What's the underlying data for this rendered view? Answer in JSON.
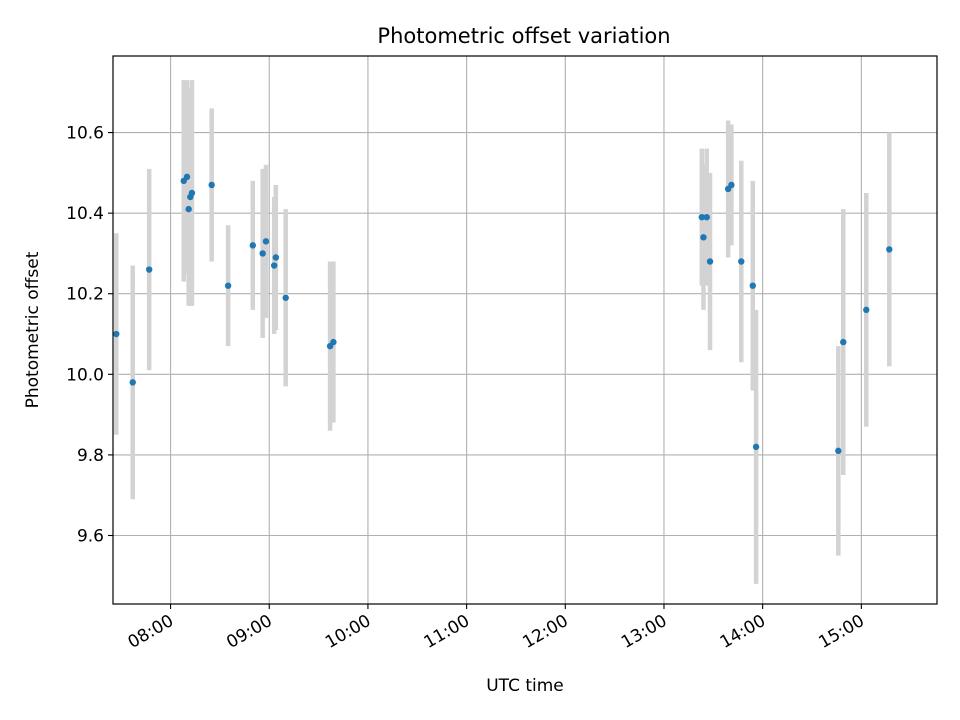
{
  "chart_data": {
    "type": "scatter",
    "title": "Photometric offset variation",
    "xlabel": "UTC time",
    "ylabel": "Photometric offset",
    "x_ticks": [
      "08:00",
      "09:00",
      "10:00",
      "11:00",
      "12:00",
      "13:00",
      "14:00",
      "15:00"
    ],
    "y_ticks": [
      "9.6",
      "9.8",
      "10.0",
      "10.2",
      "10.4",
      "10.6"
    ],
    "xlim": [
      "07:25",
      "15:46"
    ],
    "ylim": [
      9.43,
      10.79
    ],
    "grid": true,
    "colors": {
      "point": "#1f77b4",
      "errorbar": "#d3d3d3",
      "grid": "#b0b0b0"
    },
    "points": [
      {
        "x": "07:27",
        "y": 10.1,
        "err": 0.25
      },
      {
        "x": "07:37",
        "y": 9.98,
        "err": 0.29
      },
      {
        "x": "07:47",
        "y": 10.26,
        "err": 0.25
      },
      {
        "x": "08:08",
        "y": 10.48,
        "err": 0.25
      },
      {
        "x": "08:10",
        "y": 10.49,
        "err": 0.24
      },
      {
        "x": "08:11",
        "y": 10.41,
        "err": 0.24
      },
      {
        "x": "08:12",
        "y": 10.44,
        "err": 0.27
      },
      {
        "x": "08:13",
        "y": 10.45,
        "err": 0.28
      },
      {
        "x": "08:25",
        "y": 10.47,
        "err": 0.19
      },
      {
        "x": "08:35",
        "y": 10.22,
        "err": 0.15
      },
      {
        "x": "08:50",
        "y": 10.32,
        "err": 0.16
      },
      {
        "x": "08:56",
        "y": 10.3,
        "err": 0.21
      },
      {
        "x": "08:58",
        "y": 10.33,
        "err": 0.19
      },
      {
        "x": "09:03",
        "y": 10.27,
        "err": 0.17
      },
      {
        "x": "09:04",
        "y": 10.29,
        "err": 0.18
      },
      {
        "x": "09:10",
        "y": 10.19,
        "err": 0.22
      },
      {
        "x": "09:37",
        "y": 10.07,
        "err": 0.21
      },
      {
        "x": "09:39",
        "y": 10.08,
        "err": 0.2
      },
      {
        "x": "13:23",
        "y": 10.39,
        "err": 0.17
      },
      {
        "x": "13:24",
        "y": 10.34,
        "err": 0.18
      },
      {
        "x": "13:26",
        "y": 10.39,
        "err": 0.17
      },
      {
        "x": "13:28",
        "y": 10.28,
        "err": 0.22
      },
      {
        "x": "13:39",
        "y": 10.46,
        "err": 0.17
      },
      {
        "x": "13:41",
        "y": 10.47,
        "err": 0.15
      },
      {
        "x": "13:47",
        "y": 10.28,
        "err": 0.25
      },
      {
        "x": "13:54",
        "y": 10.22,
        "err": 0.26
      },
      {
        "x": "13:56",
        "y": 9.82,
        "err": 0.34
      },
      {
        "x": "14:46",
        "y": 9.81,
        "err": 0.26
      },
      {
        "x": "14:49",
        "y": 10.08,
        "err": 0.33
      },
      {
        "x": "15:03",
        "y": 10.16,
        "err": 0.29
      },
      {
        "x": "15:17",
        "y": 10.31,
        "err": 0.29
      }
    ]
  }
}
